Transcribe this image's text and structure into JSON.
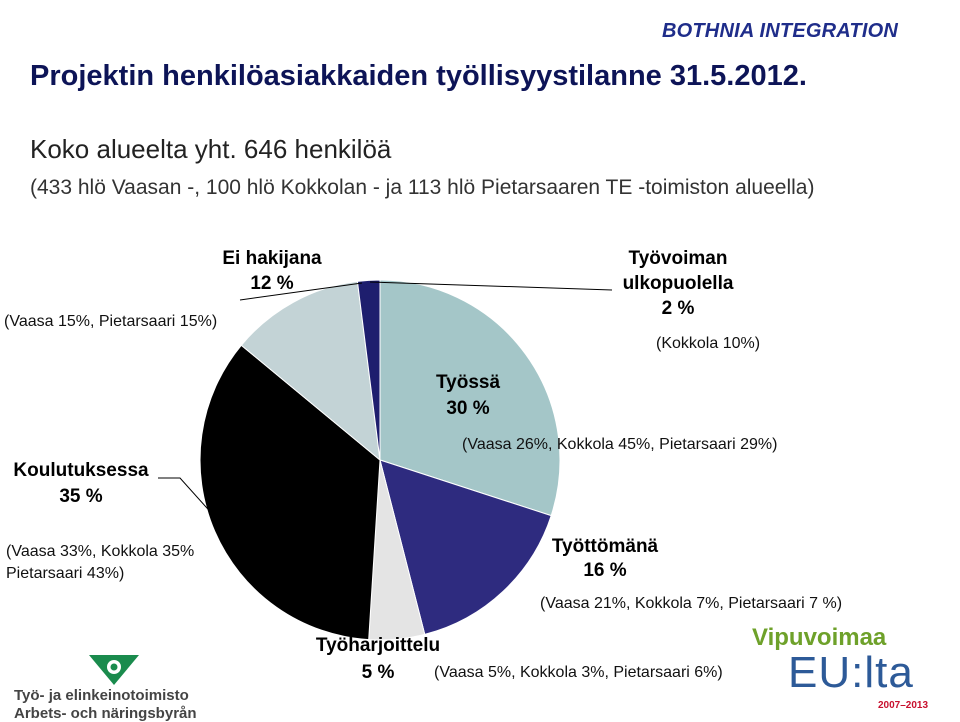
{
  "brand": "BOTHNIA INTEGRATION",
  "title": "Projektin henkilöasiakkaiden työllisyystilanne 31.5.2012.",
  "subtitle_line1": "Koko alueelta yht. 646 henkilöä",
  "subtitle_line2": "(433 hlö Vaasan -, 100 hlö Kokkolan - ja 113 hlö Pietarsaaren TE -toimiston alueella)",
  "chart_data": {
    "type": "pie",
    "slices": [
      {
        "name": "Työssä",
        "value": 30,
        "label_line1": "Työssä",
        "label_line2": "30 %",
        "note": "(Vaasa 26%, Kokkola 45%, Pietarsaari 29%)",
        "color": "#a4c6c8"
      },
      {
        "name": "Työttömänä",
        "value": 16,
        "label_line1": "Työttömänä",
        "label_line2": "16 %",
        "note": "(Vaasa 21%, Kokkola 7%,  Pietarsaari 7 %)",
        "color": "#2e2b7f"
      },
      {
        "name": "Työharjoittelu",
        "value": 5,
        "label_line1": "Työharjoittelu",
        "label_line2": "5 %",
        "note": "(Vaasa 5%, Kokkola 3%, Pietarsaari 6%)",
        "color": "#e4e4e4"
      },
      {
        "name": "Koulutuksessa",
        "value": 35,
        "label_line1": "Koulutuksessa",
        "label_line2": "35 %",
        "note_line1": "(Vaasa 33%, Kokkola 35%",
        "note_line2": "Pietarsaari 43%)",
        "color": "#000000"
      },
      {
        "name": "Ei hakijana",
        "value": 12,
        "label_line1": "Ei hakijana",
        "label_line2": "12 %",
        "note": "(Vaasa 15%, Pietarsaari 15%)",
        "color": "#c3d3d6"
      },
      {
        "name": "Työvoiman ulkopuolella",
        "value": 2,
        "label_line1": "Työvoiman",
        "label_line2": "ulkopuolella",
        "label_line3": "2 %",
        "note": "(Kokkola 10%)",
        "color": "#1e1e6e"
      }
    ]
  },
  "logo_left": {
    "line1": "Työ- ja elinkeinotoimisto",
    "line2": "Arbets- och näringsbyrån"
  },
  "logo_right": {
    "vipu": "Vipuvoimaa",
    "eulta": "EU:lta",
    "years": "2007–2013"
  },
  "colors": {
    "title": "#0d1457",
    "brand": "#1f2d8a"
  }
}
